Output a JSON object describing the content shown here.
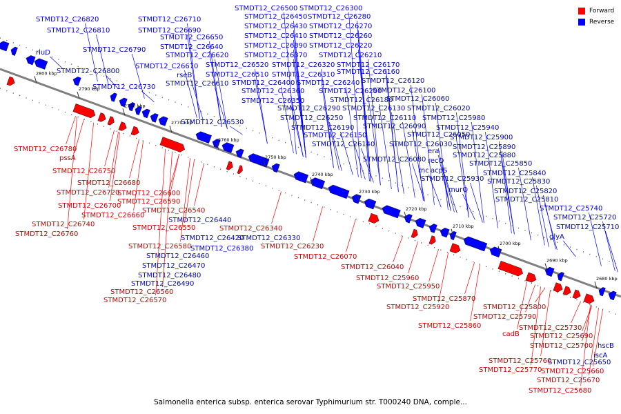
{
  "caption": "Salmonella enterica subsp. enterica serovar Typhimurium str. T000240 DNA, comple...",
  "legend": {
    "forward_label": "Forward",
    "reverse_label": "Reverse",
    "forward_color": "#ff0000",
    "reverse_color": "#0000ff"
  },
  "colors": {
    "forward_text": "#cc0000",
    "reverse_text": "#0000cc",
    "backbone": "#808080"
  },
  "ticks": [
    "2680 kbp",
    "2690 kbp",
    "2700 kbp",
    "2710 kbp",
    "2720 kbp",
    "2730 kbp",
    "2740 kbp",
    "2750 kbp",
    "2760 kbp",
    "2770 kbp",
    "2780 kbp",
    "2790 kbp",
    "2800 kbp"
  ],
  "reverse_labels": [
    "STMDT12_C26820",
    "STMDT12_C26810",
    "rluD",
    "STMDT12_C26790",
    "STMDT12_C26800",
    "STMDT12_C26730",
    "STMDT12_C26710",
    "STMDT12_C26690",
    "STMDT12_C26650",
    "STMDT12_C26640",
    "STMDT12_C26620",
    "STMDT12_C26670",
    "rseB",
    "STMDT12_C26610",
    "STMDT12_C26500",
    "STMDT12_C26450",
    "STMDT12_C26430",
    "STMDT12_C26410",
    "STMDT12_C26390",
    "STMDT12_C26370",
    "STMDT12_C26520",
    "STMDT12_C26510",
    "STMDT12_C26400",
    "STMDT12_C26360",
    "STMDT12_C26350",
    "STMDT12_C26530",
    "STMDT12_C26300",
    "STMDT12_C26280",
    "STMDT12_C26270",
    "STMDT12_C26260",
    "STMDT12_C26220",
    "STMDT12_C26210",
    "STMDT12_C26320",
    "STMDT12_C26310",
    "STMDT12_C26240",
    "STMDT12_C26200",
    "STMDT12_C26290",
    "STMDT12_C26250",
    "STMDT12_C26190",
    "STMDT12_C26150",
    "STMDT12_C26140",
    "STMDT12_C26170",
    "STMDT12_C26160",
    "STMDT12_C26180",
    "STMDT12_C26130",
    "STMDT12_C26110",
    "STMDT12_C26090",
    "STMDT12_C26120",
    "STMDT12_C26100",
    "STMDT12_C26060",
    "STMDT12_C26020",
    "STMDT12_C25980",
    "STMDT12_C26050",
    "STMDT12_C26030",
    "STMDT12_C26080",
    "STMDT12_C25940",
    "STMDT12_C25900",
    "STMDT12_C25890",
    "STMDT12_C25880",
    "era",
    "recO",
    "rnc",
    "acpS",
    "STMDT12_C25850",
    "STMDT12_C25840",
    "STMDT12_C25930",
    "STMDT12_C25830",
    "murQ",
    "STMDT12_C25820",
    "STMDT12_C25810",
    "STMDT12_C25740",
    "STMDT12_C25720",
    "STMDT12_C25710",
    "glyA",
    "STMDT12_C26440",
    "STMDT12_C26420",
    "STMDT12_C26380",
    "STMDT12_C26330",
    "STMDT12_C26460",
    "STMDT12_C26470",
    "STMDT12_C26480",
    "STMDT12_C26490",
    "hscB",
    "iscA",
    "STMDT12_C25650"
  ],
  "forward_labels": [
    "STMDT12_C26780",
    "pssA",
    "STMDT12_C26750",
    "STMDT12_C26680",
    "STMDT12_C26720",
    "STMDT12_C26600",
    "STMDT12_C26700",
    "STMDT12_C26590",
    "STMDT12_C26660",
    "STMDT12_C26740",
    "STMDT12_C26540",
    "STMDT12_C26760",
    "STMDT12_C26550",
    "STMDT12_C26340",
    "STMDT12_C26580",
    "STMDT12_C26230",
    "STMDT12_C26560",
    "STMDT12_C26570",
    "STMDT12_C26070",
    "STMDT12_C26040",
    "STMDT12_C25960",
    "STMDT12_C25950",
    "STMDT12_C25870",
    "STMDT12_C25920",
    "STMDT12_C25800",
    "STMDT12_C25860",
    "STMDT12_C25790",
    "cadB",
    "STMDT12_C25730",
    "STMDT12_C25690",
    "STMDT12_C25700",
    "STMDT12_C25760",
    "STMDT12_C25770",
    "STMDT12_C25660",
    "STMDT12_C25670",
    "STMDT12_C25680"
  ]
}
